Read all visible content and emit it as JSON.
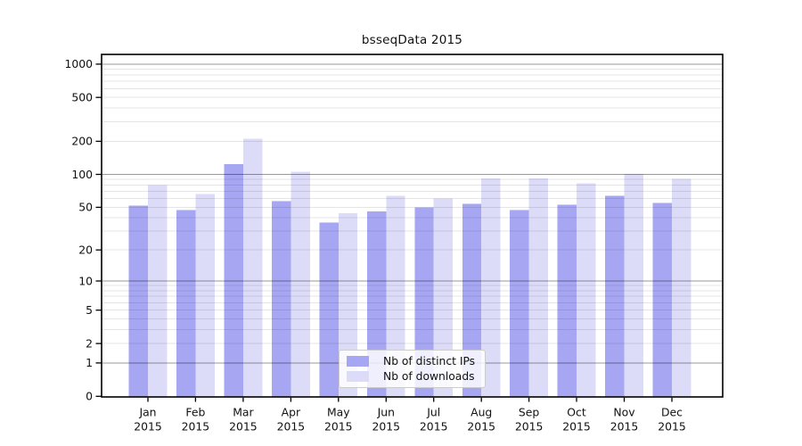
{
  "chart_data": {
    "type": "bar",
    "title": "bsseqData 2015",
    "xlabel": "",
    "ylabel": "",
    "scale": "log1p",
    "ylim": [
      0,
      1000
    ],
    "yticks": [
      0,
      1,
      2,
      5,
      10,
      20,
      50,
      100,
      200,
      500,
      1000
    ],
    "major_gridlines": [
      1,
      10,
      100,
      1000
    ],
    "grid": true,
    "legend_position": "inside bottom-center",
    "categories": [
      "Jan",
      "Feb",
      "Mar",
      "Apr",
      "May",
      "Jun",
      "Jul",
      "Aug",
      "Sep",
      "Oct",
      "Nov",
      "Dec"
    ],
    "xtick_year": "2015",
    "series": [
      {
        "name": "Nb of distinct IPs",
        "color": "#a6a6f2",
        "values": [
          52,
          47,
          124,
          57,
          36,
          46,
          50,
          54,
          47,
          53,
          64,
          55
        ]
      },
      {
        "name": "Nb of downloads",
        "color": "#dcdcf8",
        "values": [
          80,
          66,
          212,
          106,
          44,
          64,
          60,
          92,
          92,
          83,
          101,
          91
        ]
      }
    ]
  },
  "colors": {
    "background": "#ffffff",
    "spine": "#000000",
    "major_grid": "#999999",
    "minor_grid": "#e6e6e6",
    "text": "#111111",
    "legend_border": "#cccccc"
  }
}
